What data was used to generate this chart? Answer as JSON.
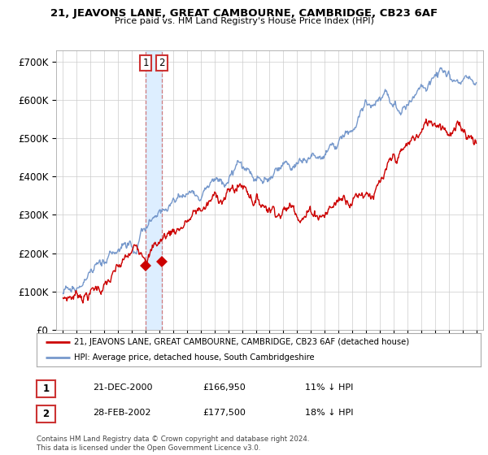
{
  "title": "21, JEAVONS LANE, GREAT CAMBOURNE, CAMBRIDGE, CB23 6AF",
  "subtitle": "Price paid vs. HM Land Registry's House Price Index (HPI)",
  "legend_line1": "21, JEAVONS LANE, GREAT CAMBOURNE, CAMBRIDGE, CB23 6AF (detached house)",
  "legend_line2": "HPI: Average price, detached house, South Cambridgeshire",
  "transaction1_label": "1",
  "transaction1_date": "21-DEC-2000",
  "transaction1_price": "£166,950",
  "transaction1_hpi": "11% ↓ HPI",
  "transaction2_label": "2",
  "transaction2_date": "28-FEB-2002",
  "transaction2_price": "£177,500",
  "transaction2_hpi": "18% ↓ HPI",
  "footer": "Contains HM Land Registry data © Crown copyright and database right 2024.\nThis data is licensed under the Open Government Licence v3.0.",
  "ylim": [
    0,
    730000
  ],
  "yticks": [
    0,
    100000,
    200000,
    300000,
    400000,
    500000,
    600000,
    700000
  ],
  "ytick_labels": [
    "£0",
    "£100K",
    "£200K",
    "£300K",
    "£400K",
    "£500K",
    "£600K",
    "£700K"
  ],
  "background_color": "#ffffff",
  "grid_color": "#cccccc",
  "red_color": "#cc0000",
  "blue_color": "#7799cc",
  "vline_color": "#cc6666",
  "shade_color": "#ddeeff",
  "transaction1_x": 2001.0,
  "transaction2_x": 2002.17,
  "transaction1_y": 166950,
  "transaction2_y": 177500,
  "xlim_left": 1994.5,
  "xlim_right": 2025.5
}
